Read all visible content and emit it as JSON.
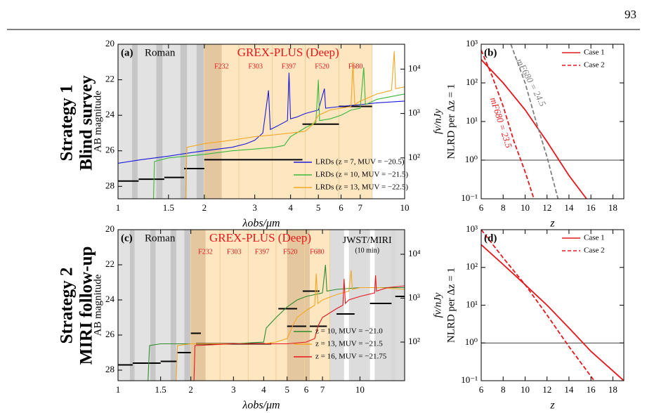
{
  "page_number": "93",
  "row_labels": [
    [
      "Strategy 1",
      "Blind survey"
    ],
    [
      "Strategy 2",
      "MIRI follow-up"
    ]
  ],
  "chart_data": [
    {
      "type": "line",
      "panel_label": "(a)",
      "xlabel": "λobs/μm",
      "ylabel": "AB magnitude",
      "y2label": "fν/nJy",
      "xscale": "log",
      "xlim": [
        1,
        10
      ],
      "xticks": [
        1,
        1.5,
        2,
        3,
        4,
        5,
        6,
        7,
        10
      ],
      "ylim": [
        20,
        28.7
      ],
      "y_inverted": true,
      "yticks": [
        20,
        22,
        24,
        26,
        28
      ],
      "y2scale": "log",
      "y2lim": [
        12,
        36300
      ],
      "y2ticks": [
        {
          "value": 100,
          "label": "10²"
        },
        {
          "value": 1000,
          "label": "10³"
        },
        {
          "value": 10000,
          "label": "10⁴"
        }
      ],
      "roman_label": "Roman",
      "roman_range": [
        1,
        2
      ],
      "roman_filters": [
        [
          1.12,
          1.17
        ],
        [
          1.36,
          1.43
        ],
        [
          1.65,
          1.74
        ],
        [
          1.88,
          1.99
        ]
      ],
      "grex_label": "GREX-PLUS (Deep)",
      "grex_range": [
        2,
        7.7
      ],
      "grex_deep_bands": [
        [
          2,
          2.3
        ]
      ],
      "grex_filters": [
        {
          "range": [
            2,
            2.64
          ],
          "label": "F232"
        },
        {
          "range": [
            2.64,
            3.45
          ],
          "label": "F303"
        },
        {
          "range": [
            3.45,
            4.5
          ],
          "label": "F397"
        },
        {
          "range": [
            4.5,
            5.9
          ],
          "label": "F520"
        },
        {
          "range": [
            5.9,
            7.7
          ],
          "label": "F680"
        }
      ],
      "limits": [
        {
          "range": [
            1,
            1.18
          ],
          "value": 27.7
        },
        {
          "range": [
            1.18,
            1.45
          ],
          "value": 27.6
        },
        {
          "range": [
            1.45,
            1.7
          ],
          "value": 27.5
        },
        {
          "range": [
            1.7,
            2.0
          ],
          "value": 27.0
        },
        {
          "range": [
            2.0,
            4.4
          ],
          "value": 26.5
        },
        {
          "range": [
            4.4,
            5.9
          ],
          "value": 24.5
        },
        {
          "range": [
            5.9,
            7.7
          ],
          "value": 23.5
        }
      ],
      "legend": "lower right",
      "series": [
        {
          "name": "LRDs (z = 7, MUV = −20.5)",
          "color": "#1a1adb",
          "x": [
            1,
            1.2,
            1.5,
            1.8,
            2,
            2.5,
            2.8,
            3.0,
            3.2,
            3.35,
            3.4,
            3.6,
            3.9,
            3.95,
            4.0,
            4.2,
            4.5,
            5.0,
            5.25,
            5.3,
            6,
            7,
            8,
            10
          ],
          "values": [
            26.7,
            26.5,
            26.3,
            26.1,
            26.0,
            25.8,
            25.6,
            25.4,
            25.0,
            22.6,
            24.8,
            24.6,
            24.3,
            21.6,
            24.2,
            24.1,
            23.9,
            23.7,
            22.5,
            23.6,
            23.5,
            23.4,
            23.3,
            23.2
          ]
        },
        {
          "name": "LRDs (z = 10, MUV = −21.5)",
          "color": "#3cb83c",
          "x": [
            1.33,
            1.34,
            1.5,
            2,
            2.5,
            3,
            3.5,
            3.8,
            4.0,
            4.2,
            4.5,
            4.9,
            5.0,
            5.05,
            5.5,
            6,
            6.5,
            7.0,
            7.2,
            7.3,
            8,
            10
          ],
          "values": [
            28.7,
            26.6,
            26.4,
            26.2,
            26.0,
            25.9,
            25.8,
            25.7,
            25.2,
            25.0,
            24.7,
            24.4,
            22.0,
            24.3,
            24.2,
            24.0,
            23.7,
            23.6,
            21.3,
            23.4,
            23.1,
            22.8
          ]
        },
        {
          "name": "LRDs (z = 13, MUV = −22.5)",
          "color": "#f5a623",
          "x": [
            1.72,
            1.74,
            2,
            2.5,
            3,
            3.5,
            4,
            4.5,
            4.8,
            5.0,
            5.5,
            6,
            6.5,
            6.6,
            6.7,
            7,
            7.5,
            8,
            9,
            9.2,
            9.3,
            10
          ],
          "values": [
            28.7,
            25.8,
            25.6,
            25.4,
            25.2,
            25.1,
            25.0,
            24.9,
            24.5,
            24.0,
            23.7,
            23.6,
            23.5,
            21.0,
            23.4,
            23.2,
            23.0,
            22.8,
            22.6,
            20.4,
            22.5,
            22.4
          ]
        }
      ]
    },
    {
      "type": "line",
      "panel_label": "(b)",
      "xlabel": "z",
      "ylabel": "NLRD per Δz = 1",
      "xscale": "linear",
      "xlim": [
        6,
        19
      ],
      "xticks": [
        6,
        8,
        10,
        12,
        14,
        16,
        18
      ],
      "yscale": "log",
      "ylim": [
        0.1,
        1000
      ],
      "yticks": [
        {
          "value": 0.1,
          "label": "10⁻¹"
        },
        {
          "value": 1,
          "label": "10⁰"
        },
        {
          "value": 10,
          "label": "10¹"
        },
        {
          "value": 100,
          "label": "10²"
        },
        {
          "value": 1000,
          "label": "10³"
        }
      ],
      "hline": 1,
      "legend": "upper right",
      "annotations": [
        {
          "text": "mF680 = 24.5",
          "color": "#808080"
        },
        {
          "text": "mF680 = 23.5",
          "color": "#e8161b"
        }
      ],
      "series": [
        {
          "name": "Case 1",
          "color": "#e8161b",
          "x": [
            6,
            8,
            10,
            12,
            14,
            15.6
          ],
          "values": [
            400,
            100,
            20,
            3,
            0.4,
            0.1
          ]
        },
        {
          "name": "Case 2",
          "color": "#e8161b",
          "dash": true,
          "x": [
            6,
            7,
            8,
            9,
            10,
            10.8
          ],
          "values": [
            700,
            150,
            25,
            3,
            0.5,
            0.1
          ]
        },
        {
          "color": "#808080",
          "dash": true,
          "x": [
            8.7,
            10,
            11,
            12,
            13
          ],
          "values": [
            1000,
            100,
            10,
            1.2,
            0.1
          ]
        }
      ]
    },
    {
      "type": "line",
      "panel_label": "(c)",
      "xlabel": "λobs/μm",
      "ylabel": "AB magnitude",
      "y2label": "fν/nJy",
      "xscale": "log",
      "xlim": [
        1,
        15.3
      ],
      "xticks": [
        1,
        1.5,
        2,
        3,
        4,
        5,
        6,
        7,
        10
      ],
      "ylim": [
        20,
        28.6
      ],
      "y_inverted": true,
      "yticks": [
        20,
        22,
        24,
        26,
        28
      ],
      "y2scale": "log",
      "y2lim": [
        13.2,
        36300
      ],
      "y2ticks": [
        {
          "value": 100,
          "label": "10²"
        },
        {
          "value": 1000,
          "label": "10³"
        },
        {
          "value": 10000,
          "label": "10⁴"
        }
      ],
      "roman_label": "Roman",
      "roman_range": [
        1,
        2
      ],
      "roman_filters": [
        [
          1.12,
          1.17
        ],
        [
          1.36,
          1.43
        ],
        [
          1.65,
          1.74
        ],
        [
          1.88,
          1.99
        ]
      ],
      "grex_label": "GREX-PLUS (Deep)",
      "grex_range": [
        2,
        7.5
      ],
      "grex_deep_bands": [
        [
          2,
          2.3
        ],
        [
          5,
          6.2
        ]
      ],
      "grex_filters": [
        {
          "range": [
            2,
            2.64
          ],
          "label": "F232"
        },
        {
          "range": [
            2.64,
            3.45
          ],
          "label": "F303"
        },
        {
          "range": [
            3.45,
            4.5
          ],
          "label": "F397"
        },
        {
          "range": [
            4.5,
            5.9
          ],
          "label": "F520"
        },
        {
          "range": [
            5.9,
            7.5
          ],
          "label": "F680"
        }
      ],
      "miri_label": "JWST/MIRI",
      "miri_note": "(10 min)",
      "miri_filters": [
        [
          7.5,
          8.6
        ],
        [
          9,
          11
        ],
        [
          11.5,
          14
        ],
        [
          13.5,
          15.3
        ]
      ],
      "limits": [
        {
          "range": [
            1,
            1.15
          ],
          "value": 27.7
        },
        {
          "range": [
            1.15,
            1.5
          ],
          "value": 27.6
        },
        {
          "range": [
            1.5,
            1.75
          ],
          "value": 27.5
        },
        {
          "range": [
            1.75,
            2.0
          ],
          "value": 27.0
        },
        {
          "range": [
            2.0,
            2.2
          ],
          "value": 25.9
        },
        {
          "range": [
            2.1,
            4.3
          ],
          "value": 26.5
        },
        {
          "range": [
            4.6,
            5.5
          ],
          "value": 24.5
        },
        {
          "range": [
            5.0,
            6.0
          ],
          "value": 25.5
        },
        {
          "range": [
            5.8,
            6.8
          ],
          "value": 23.5
        },
        {
          "range": [
            6.2,
            7.3
          ],
          "value": 25.5
        },
        {
          "range": [
            8,
            9.5
          ],
          "value": 24.8
        },
        {
          "range": [
            11,
            13.5
          ],
          "value": 24.2
        },
        {
          "range": [
            14,
            15.3
          ],
          "value": 23.8
        }
      ],
      "legend": "lower right",
      "series": [
        {
          "name": "z = 10, MUV = −21.0",
          "color": "#2e8b2e",
          "x": [
            1.33,
            1.35,
            1.5,
            2,
            3,
            4,
            4.1,
            4.5,
            5,
            5.5,
            6,
            7,
            7.2,
            7.3,
            8,
            10,
            12,
            15.3
          ],
          "values": [
            28.6,
            26.6,
            26.5,
            26.5,
            26.5,
            26.4,
            25.6,
            25.0,
            24.4,
            24.0,
            23.8,
            23.6,
            22.0,
            23.5,
            23.4,
            23.3,
            23.3,
            23.3
          ]
        },
        {
          "name": "z = 13, MUV = −21.5",
          "color": "#f5a623",
          "x": [
            1.74,
            1.76,
            2,
            3,
            4,
            4.5,
            5,
            5.3,
            5.5,
            6,
            6.5,
            6.6,
            6.7,
            7,
            8,
            9,
            9.2,
            9.3,
            10,
            12,
            15.3
          ],
          "values": [
            28.6,
            26.6,
            26.5,
            26.5,
            26.5,
            26.4,
            26.2,
            25.4,
            25.0,
            24.6,
            24.3,
            22.5,
            24.2,
            24.0,
            23.7,
            23.5,
            22.3,
            23.4,
            23.3,
            23.3,
            23.4
          ]
        },
        {
          "name": "z = 16, MUV = −21.75",
          "color": "#e8161b",
          "x": [
            2.06,
            2.08,
            3,
            4,
            5,
            6,
            6.5,
            6.7,
            7,
            8,
            8.5,
            8.6,
            8.7,
            9,
            10,
            11.5,
            11.6,
            11.7,
            13,
            15.3
          ],
          "values": [
            28.6,
            26.6,
            26.5,
            26.5,
            26.5,
            26.4,
            26.2,
            25.5,
            25.0,
            24.5,
            24.3,
            22.8,
            24.2,
            24.0,
            23.8,
            23.6,
            22.6,
            23.5,
            23.3,
            23.2
          ]
        }
      ]
    },
    {
      "type": "line",
      "panel_label": "(d)",
      "xlabel": "z",
      "ylabel": "NLRD per Δz = 1",
      "xscale": "linear",
      "xlim": [
        6,
        19
      ],
      "xticks": [
        6,
        8,
        10,
        12,
        14,
        16,
        18
      ],
      "yscale": "log",
      "ylim": [
        0.1,
        1000
      ],
      "yticks": [
        {
          "value": 0.1,
          "label": "10⁻¹"
        },
        {
          "value": 1,
          "label": "10⁰"
        },
        {
          "value": 10,
          "label": "10¹"
        },
        {
          "value": 100,
          "label": "10²"
        },
        {
          "value": 1000,
          "label": "10³"
        }
      ],
      "hline": 1,
      "legend": "upper right",
      "series": [
        {
          "name": "Case 1",
          "color": "#e8161b",
          "x": [
            6,
            8,
            10,
            12,
            14,
            16,
            19
          ],
          "values": [
            400,
            120,
            35,
            10,
            2.5,
            0.6,
            0.1
          ]
        },
        {
          "name": "Case 2",
          "color": "#e8161b",
          "dash": true,
          "x": [
            6,
            8,
            10,
            12,
            14,
            16.3
          ],
          "values": [
            1000,
            180,
            35,
            5.5,
            0.8,
            0.1
          ]
        }
      ]
    }
  ]
}
